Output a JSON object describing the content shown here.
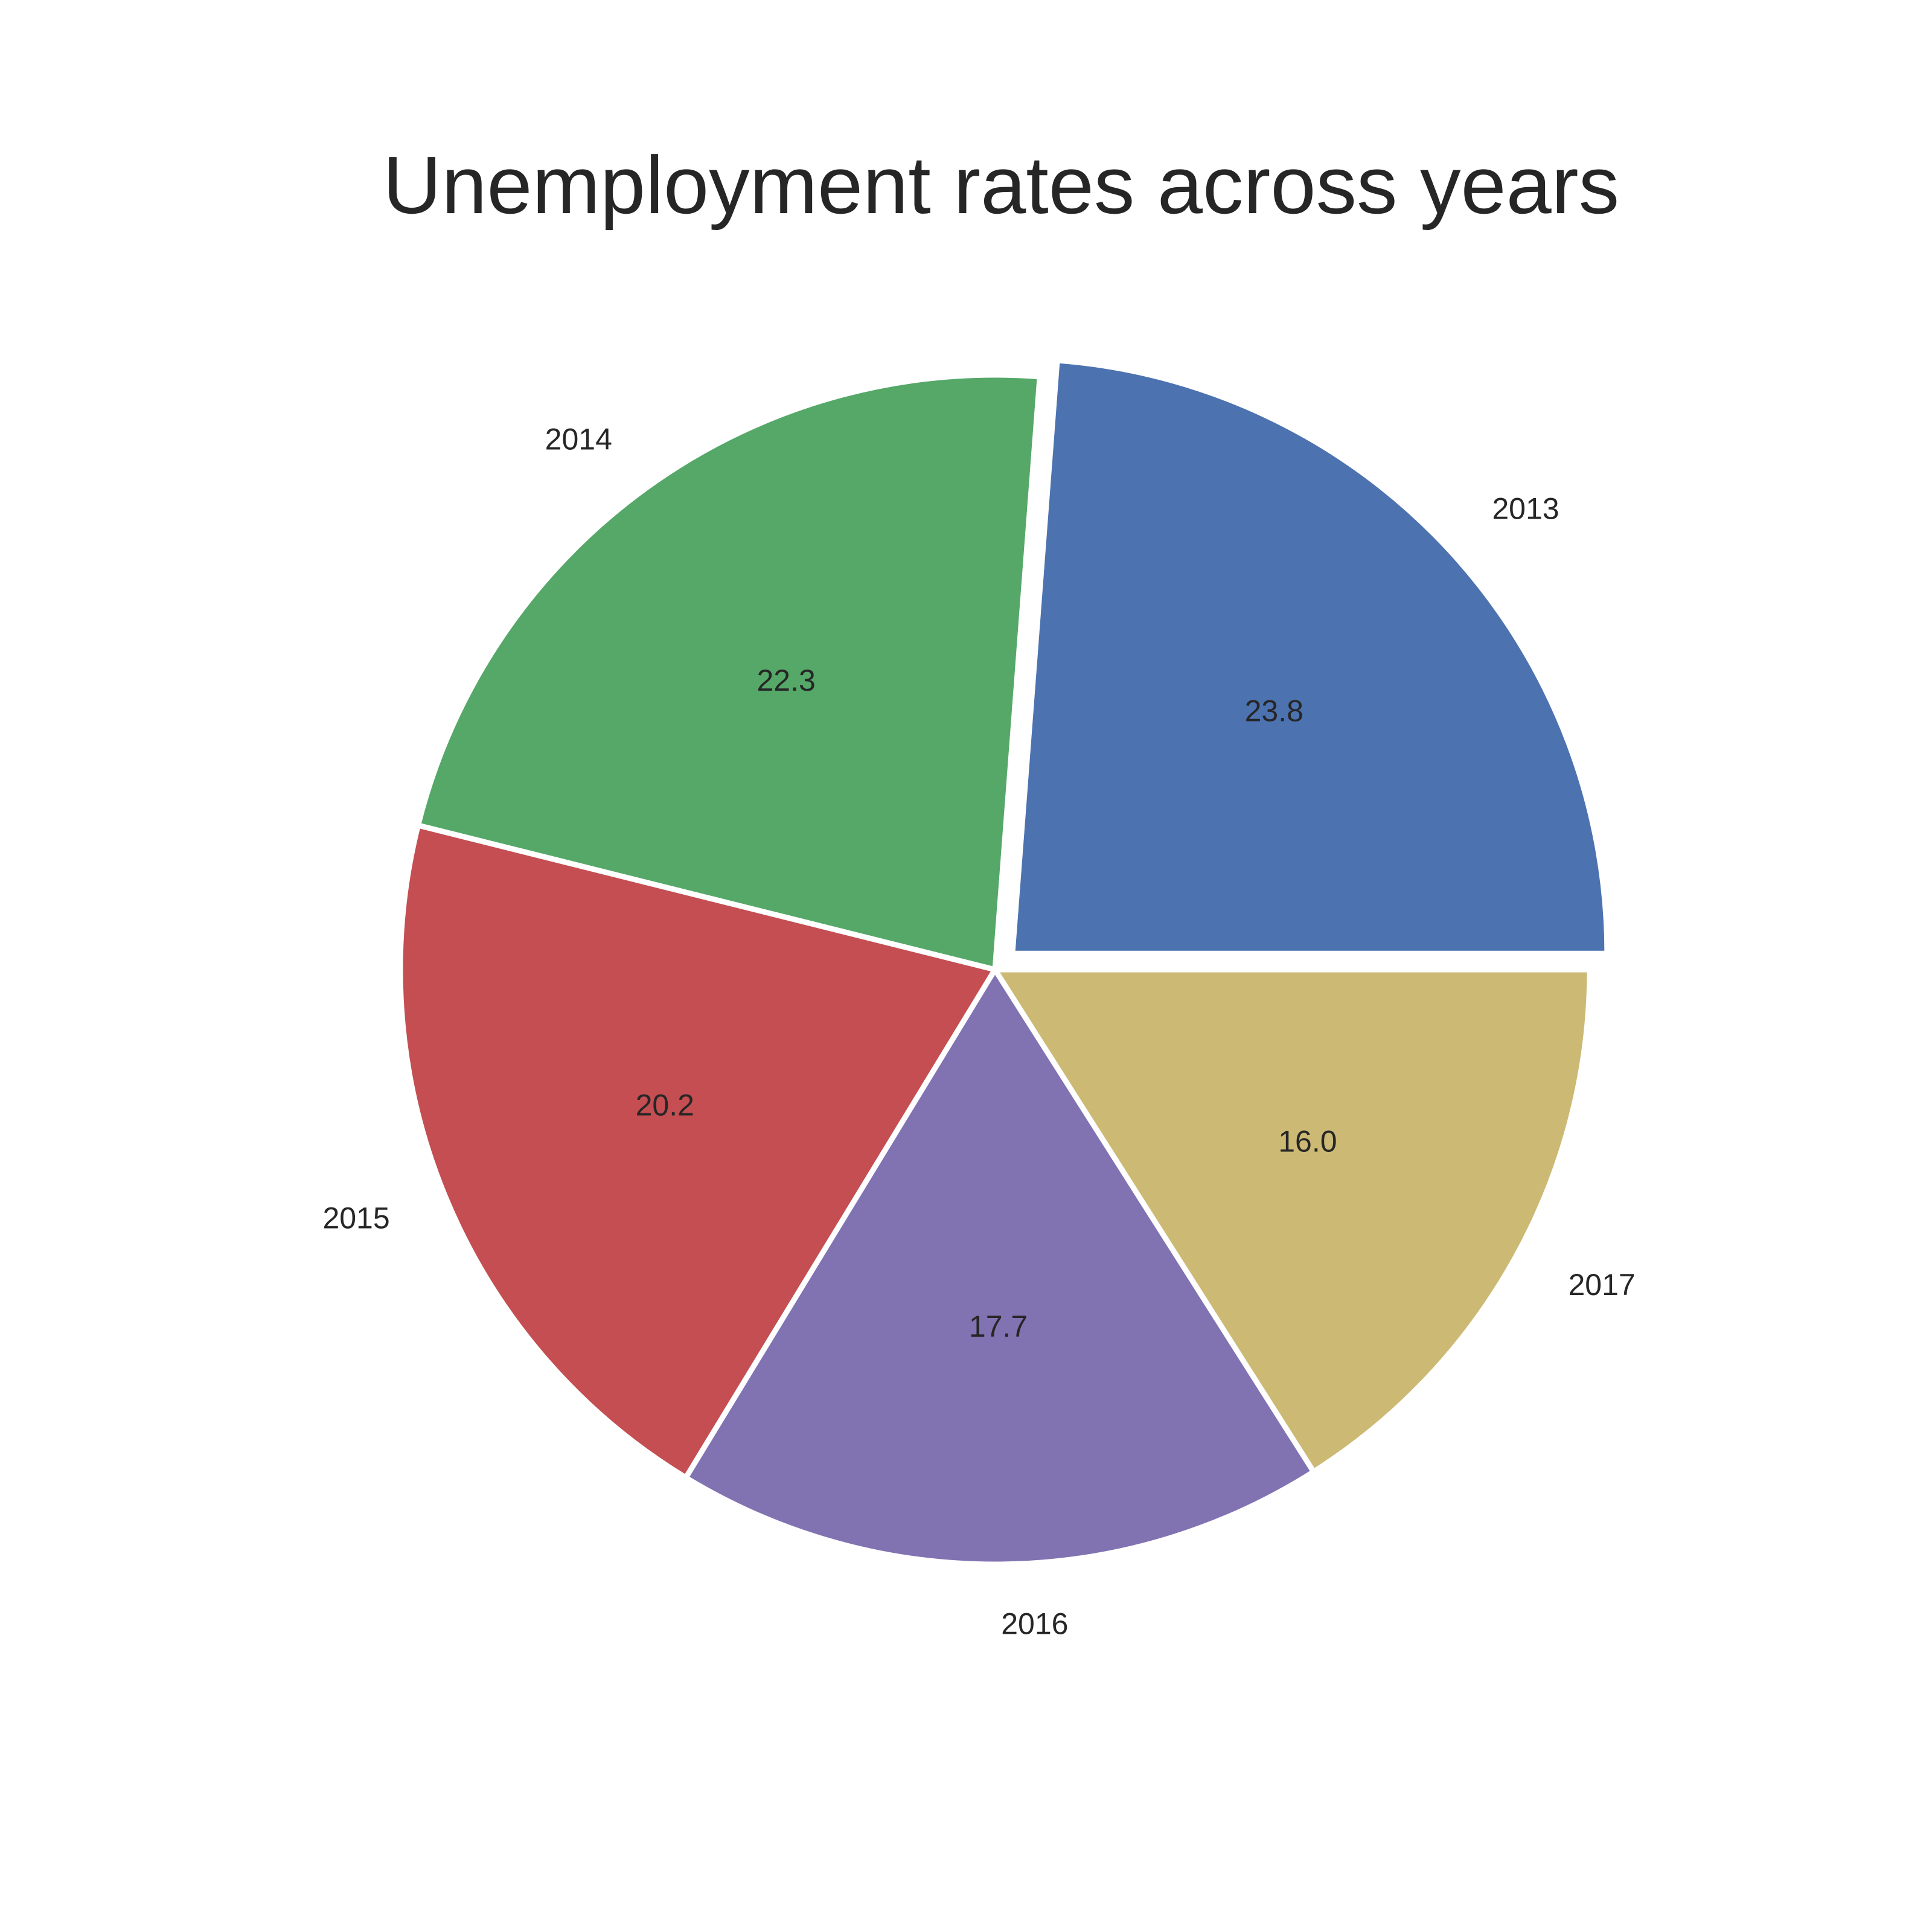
{
  "chart_data": {
    "type": "pie",
    "title": "Unemployment rates across years",
    "categories": [
      "2013",
      "2014",
      "2015",
      "2016",
      "2017"
    ],
    "values": [
      23.8,
      22.3,
      20.2,
      17.7,
      16.0
    ],
    "value_labels": [
      "23.8",
      "22.3",
      "20.2",
      "17.7",
      "16.0"
    ],
    "colors": [
      "#4c72b0",
      "#55a868",
      "#c44e52",
      "#8172b2",
      "#ccb974"
    ],
    "exploded": [
      "2013"
    ],
    "start_angle_deg": 0,
    "direction": "counterclockwise",
    "legend": "none"
  }
}
